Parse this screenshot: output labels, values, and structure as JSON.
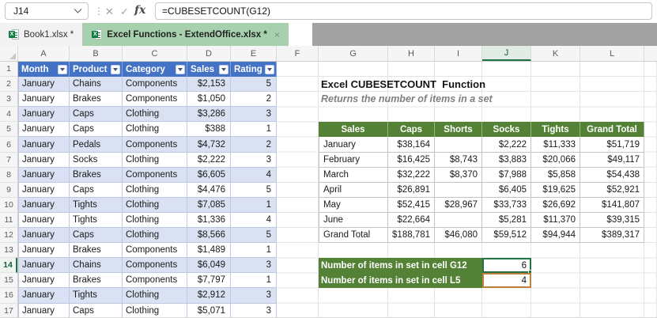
{
  "formula_bar": {
    "cell_reference": "J14",
    "formula": "=CUBESETCOUNT(G12)",
    "cancel_label": "✕",
    "enter_label": "✓",
    "fx_label": "fx"
  },
  "tabs": [
    {
      "label": "Book1.xlsx *",
      "active": false
    },
    {
      "label": "Excel Functions - ExtendOffice.xlsx *",
      "active": true,
      "close_label": "×"
    }
  ],
  "column_headers": [
    "A",
    "B",
    "C",
    "D",
    "E",
    "F",
    "G",
    "H",
    "I",
    "J",
    "K",
    "L"
  ],
  "row_count": 17,
  "selection": {
    "column": "J",
    "row": 14
  },
  "worksheet_title": "Excel CUBESETCOUNT  Function",
  "worksheet_subtitle": "Returns the number of items in a set",
  "data_table": {
    "headers": [
      "Month",
      "Product",
      "Category",
      "Sales",
      "Rating"
    ],
    "rows": [
      [
        "January",
        "Chains",
        "Components",
        "$2,153",
        "5"
      ],
      [
        "January",
        "Brakes",
        "Components",
        "$1,050",
        "2"
      ],
      [
        "January",
        "Caps",
        "Clothing",
        "$3,286",
        "3"
      ],
      [
        "January",
        "Caps",
        "Clothing",
        "$388",
        "1"
      ],
      [
        "January",
        "Pedals",
        "Components",
        "$4,732",
        "2"
      ],
      [
        "January",
        "Socks",
        "Clothing",
        "$2,222",
        "3"
      ],
      [
        "January",
        "Brakes",
        "Components",
        "$6,605",
        "4"
      ],
      [
        "January",
        "Caps",
        "Clothing",
        "$4,476",
        "5"
      ],
      [
        "January",
        "Tights",
        "Clothing",
        "$7,085",
        "1"
      ],
      [
        "January",
        "Tights",
        "Clothing",
        "$1,336",
        "4"
      ],
      [
        "January",
        "Caps",
        "Clothing",
        "$8,566",
        "5"
      ],
      [
        "January",
        "Brakes",
        "Components",
        "$1,489",
        "1"
      ],
      [
        "January",
        "Chains",
        "Components",
        "$6,049",
        "3"
      ],
      [
        "January",
        "Brakes",
        "Components",
        "$7,797",
        "1"
      ],
      [
        "January",
        "Tights",
        "Clothing",
        "$2,912",
        "3"
      ],
      [
        "January",
        "Caps",
        "Clothing",
        "$5,071",
        "3"
      ]
    ]
  },
  "pivot_table": {
    "headers": [
      "Sales",
      "Caps",
      "Shorts",
      "Socks",
      "Tights",
      "Grand Total"
    ],
    "rows": [
      [
        "January",
        "$38,164",
        "",
        "$2,222",
        "$11,333",
        "$51,719"
      ],
      [
        "February",
        "$16,425",
        "$8,743",
        "$3,883",
        "$20,066",
        "$49,117"
      ],
      [
        "March",
        "$32,222",
        "$8,370",
        "$7,988",
        "$5,858",
        "$54,438"
      ],
      [
        "April",
        "$26,891",
        "",
        "$6,405",
        "$19,625",
        "$52,921"
      ],
      [
        "May",
        "$52,415",
        "$28,967",
        "$33,733",
        "$26,692",
        "$141,807"
      ],
      [
        "June",
        "$22,664",
        "",
        "$5,281",
        "$11,370",
        "$39,315"
      ],
      [
        "Grand Total",
        "$188,781",
        "$46,080",
        "$59,512",
        "$94,944",
        "$389,317"
      ]
    ]
  },
  "results": [
    {
      "label": "Number of items in set in cell G12",
      "value": "6"
    },
    {
      "label": "Number of items in set in cell L5",
      "value": "4"
    }
  ],
  "colors": {
    "table_header_blue": "#4472C4",
    "banded_row_blue": "#D9E1F2",
    "pivot_green": "#538135",
    "selection_green": "#217346",
    "result_border_orange": "#C0803C",
    "active_tab_green": "#A7D1AE"
  }
}
